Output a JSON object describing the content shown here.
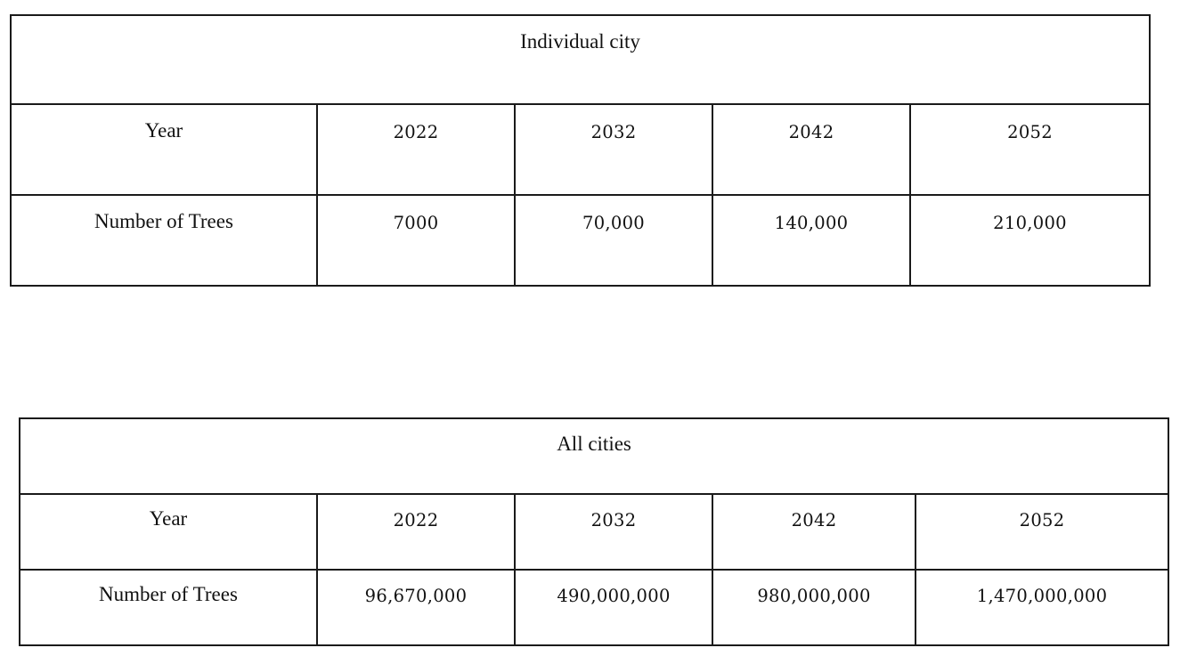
{
  "tables": [
    {
      "title": "Individual city",
      "header": {
        "label": "Year",
        "values": [
          "2022",
          "2032",
          "2042",
          "2052"
        ]
      },
      "row": {
        "label": "Number of Trees",
        "values": [
          "7000",
          "70,000",
          "140,000",
          "210,000"
        ]
      }
    },
    {
      "title": "All cities",
      "header": {
        "label": "Year",
        "values": [
          "2022",
          "2032",
          "2042",
          "2052"
        ]
      },
      "row": {
        "label": "Number of Trees",
        "values": [
          "96,670,000",
          "490,000,000",
          "980,000,000",
          "1,470,000,000"
        ]
      }
    }
  ]
}
